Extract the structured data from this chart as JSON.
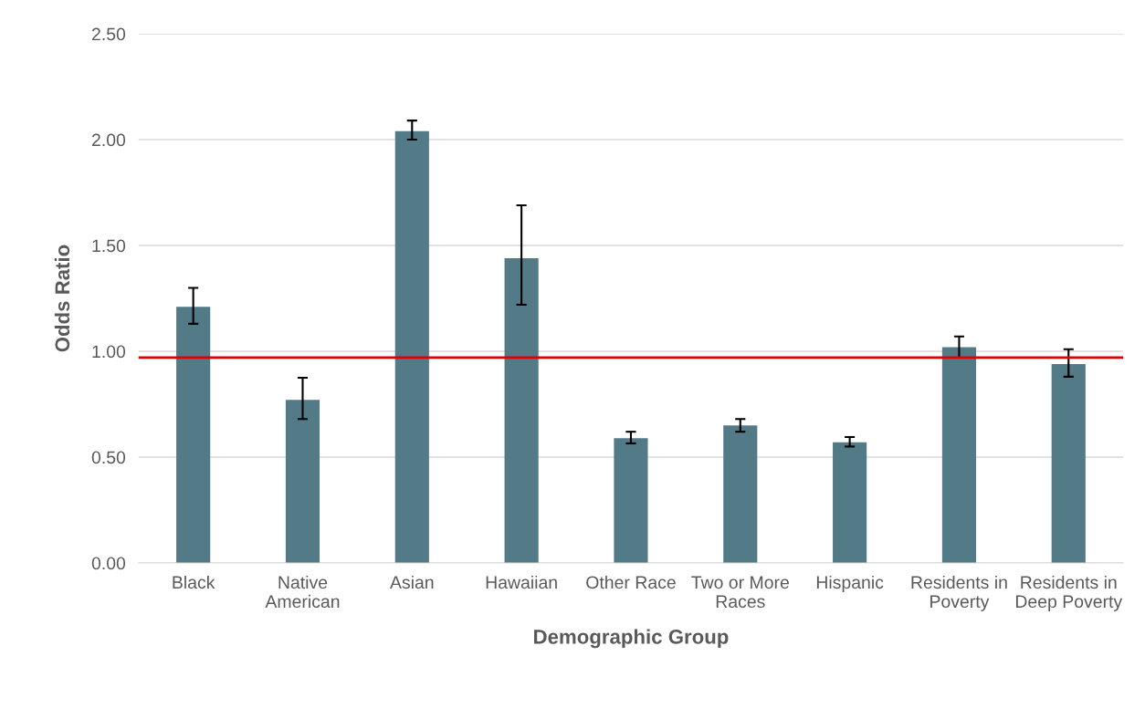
{
  "chart_data": {
    "type": "bar",
    "xlabel": "Demographic Group",
    "ylabel": "Odds Ratio",
    "categories": [
      "Black",
      "Native American",
      "Asian",
      "Hawaiian",
      "Other Race",
      "Two or More Races",
      "Hispanic",
      "Residents in Poverty",
      "Residents in Deep Poverty"
    ],
    "values": [
      1.21,
      0.77,
      2.04,
      1.44,
      0.59,
      0.65,
      0.57,
      1.02,
      0.94
    ],
    "errors": [
      [
        1.13,
        1.3
      ],
      [
        0.68,
        0.875
      ],
      [
        2.0,
        2.09
      ],
      [
        1.22,
        1.69
      ],
      [
        0.565,
        0.62
      ],
      [
        0.62,
        0.68
      ],
      [
        0.55,
        0.595
      ],
      [
        0.97,
        1.07
      ],
      [
        0.88,
        1.01
      ]
    ],
    "color": "#527a87",
    "ylim": [
      0,
      2.5
    ],
    "yticks": [
      {
        "value": 0,
        "label": "0.00"
      },
      {
        "value": 0.5,
        "label": "0.50"
      },
      {
        "value": 1,
        "label": "1.00"
      },
      {
        "value": 1.5,
        "label": "1.50"
      },
      {
        "value": 2,
        "label": "2.00"
      },
      {
        "value": 2.5,
        "label": "2.50"
      }
    ],
    "ref_lines": [
      {
        "axis": "y",
        "value": 0.97,
        "color": "#e00000"
      }
    ],
    "grid": "y"
  }
}
